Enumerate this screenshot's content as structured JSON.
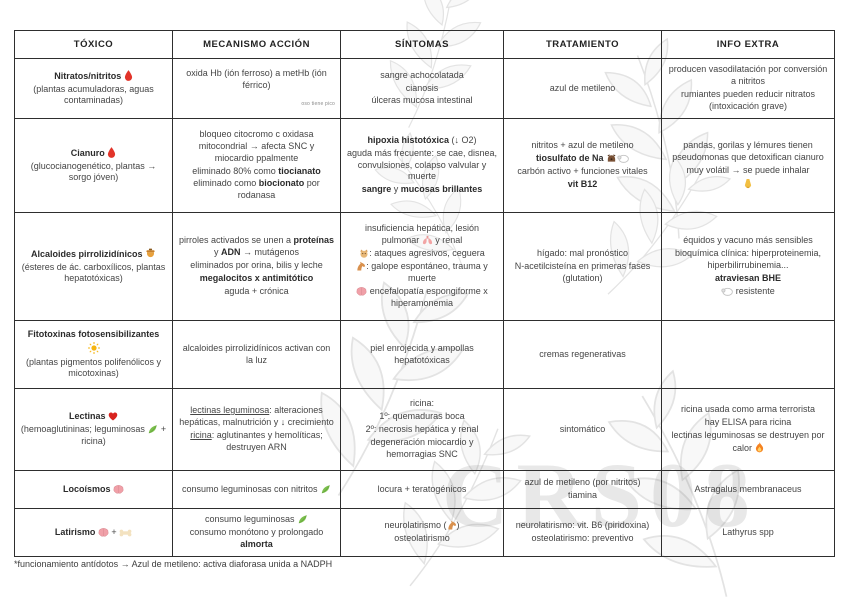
{
  "page": {
    "watermark_text": "CRS08",
    "footnote": "*funcionamiento antídotos → Azul de metileno: activa diaforasa unida a NADPH"
  },
  "colors": {
    "ink": "#454545",
    "ink_strong": "#2b2b2b",
    "border": "#2e2e2e",
    "watermark_gray": "#dfdfdf",
    "accent_red": "#e2342a"
  },
  "table": {
    "columns": [
      "TÓXICO",
      "MECANISMO ACCIÓN",
      "SÍNTOMAS",
      "TRATAMIENTO",
      "INFO EXTRA"
    ],
    "rows": [
      {
        "name": "nitratos-nitritos",
        "cells": [
          {
            "lines": [
              {
                "runs": [
                  {
                    "t": "Nitratos/nitritos ",
                    "b": true
                  },
                  {
                    "icon": "blood-drop"
                  }
                ]
              },
              {
                "runs": [
                  {
                    "t": "(plantas acumuladoras, aguas contaminadas)"
                  }
                ]
              }
            ]
          },
          {
            "lines": [
              {
                "runs": [
                  {
                    "t": "oxida Hb (ión ferroso)  a metHb (ión férrico)"
                  }
                ]
              },
              {
                "align": "right",
                "runs": [
                  {
                    "t": "oso tiene pico",
                    "tiny": true
                  }
                ]
              }
            ]
          },
          {
            "lines": [
              {
                "runs": [
                  {
                    "t": "sangre achocolatada"
                  }
                ]
              },
              {
                "runs": [
                  {
                    "t": "cianosis"
                  }
                ]
              },
              {
                "runs": [
                  {
                    "t": "úlceras mucosa intestinal"
                  }
                ]
              }
            ]
          },
          {
            "lines": [
              {
                "runs": [
                  {
                    "t": "azul de metileno"
                  }
                ]
              }
            ]
          },
          {
            "lines": [
              {
                "runs": [
                  {
                    "t": "producen vasodilatación por conversión a nitritos"
                  }
                ]
              },
              {
                "runs": [
                  {
                    "t": "rumiantes pueden reducir nitratos (intoxicación grave)"
                  }
                ]
              }
            ]
          }
        ]
      },
      {
        "name": "cianuro",
        "cells": [
          {
            "lines": [
              {
                "runs": [
                  {
                    "t": "Cianuro ",
                    "b": true
                  },
                  {
                    "icon": "blood-drop"
                  }
                ]
              },
              {
                "runs": [
                  {
                    "t": "(glucocianogenético, plantas → sorgo jóven)"
                  }
                ]
              }
            ]
          },
          {
            "lines": [
              {
                "runs": [
                  {
                    "t": "bloqueo citocromo c oxidasa mitocondrial → afecta SNC y miocardio ppalmente"
                  }
                ]
              },
              {
                "runs": [
                  {
                    "t": "eliminado 80% como "
                  },
                  {
                    "t": "tiocianato",
                    "b": true
                  }
                ]
              },
              {
                "runs": [
                  {
                    "t": "eliminado como "
                  },
                  {
                    "t": "biocionato",
                    "b": true
                  },
                  {
                    "t": " por rodanasa"
                  }
                ]
              }
            ]
          },
          {
            "lines": [
              {
                "runs": [
                  {
                    "t": "hipoxia histotóxica",
                    "b": true
                  },
                  {
                    "t": " (↓ O2)"
                  }
                ]
              },
              {
                "runs": [
                  {
                    "t": "aguda más frecuente: se cae, disnea, convulsiones, colapso valvular y muerte"
                  }
                ]
              },
              {
                "runs": [
                  {
                    "t": "sangre",
                    "b": true
                  },
                  {
                    "t": " y "
                  },
                  {
                    "t": "mucosas brillantes",
                    "b": true
                  }
                ]
              }
            ]
          },
          {
            "lines": [
              {
                "runs": [
                  {
                    "t": "nitritos + azul de metileno"
                  }
                ]
              },
              {
                "runs": [
                  {
                    "t": "tiosulfato de Na ",
                    "b": true
                  },
                  {
                    "icon": "dog"
                  },
                  {
                    "icon": "sheep"
                  }
                ]
              },
              {
                "runs": [
                  {
                    "t": "carbón activo + funciones vitales"
                  }
                ]
              },
              {
                "runs": [
                  {
                    "t": "vit B12",
                    "b": true
                  }
                ]
              }
            ]
          },
          {
            "lines": [
              {
                "runs": [
                  {
                    "t": "pandas, gorilas y lémures tienen pseudomonas que detoxifican cianuro"
                  }
                ]
              },
              {
                "runs": [
                  {
                    "t": "muy volátil → se puede inhalar"
                  }
                ]
              },
              {
                "runs": [
                  {
                    "icon": "nose"
                  }
                ]
              }
            ]
          }
        ]
      },
      {
        "name": "alcaloides-pirrolizidinicos",
        "cells": [
          {
            "lines": [
              {
                "runs": [
                  {
                    "t": "Alcaloides pirrolizidínicos ",
                    "b": true
                  },
                  {
                    "icon": "honey"
                  }
                ]
              },
              {
                "runs": [
                  {
                    "t": "(ésteres de ác. carboxílicos, plantas hepatotóxicas)"
                  }
                ]
              }
            ]
          },
          {
            "lines": [
              {
                "runs": [
                  {
                    "t": "pirroles activados se unen a "
                  },
                  {
                    "t": "proteínas",
                    "b": true
                  },
                  {
                    "t": " y "
                  },
                  {
                    "t": "ADN",
                    "b": true
                  },
                  {
                    "t": " → mutágenos"
                  }
                ]
              },
              {
                "runs": [
                  {
                    "t": "eliminados por orina, bilis y leche"
                  }
                ]
              },
              {
                "runs": [
                  {
                    "t": "megalocitos x antimitótico",
                    "b": true
                  }
                ]
              },
              {
                "runs": [
                  {
                    "t": "aguda + crónica"
                  }
                ]
              }
            ]
          },
          {
            "lines": [
              {
                "runs": [
                  {
                    "t": "insuficiencia hepática, lesión pulmonar "
                  },
                  {
                    "icon": "lungs"
                  },
                  {
                    "t": " y renal"
                  }
                ]
              },
              {
                "runs": [
                  {
                    "icon": "cat"
                  },
                  {
                    "t": ": ataques agresivos, ceguera"
                  }
                ]
              },
              {
                "runs": [
                  {
                    "icon": "horse"
                  },
                  {
                    "t": ": galope espontáneo, trauma y muerte"
                  }
                ]
              },
              {
                "runs": [
                  {
                    "icon": "brain"
                  },
                  {
                    "t": " encefalopatía espongiforme x hiperamonemia"
                  }
                ]
              }
            ]
          },
          {
            "lines": [
              {
                "runs": [
                  {
                    "t": "hígado: mal pronóstico"
                  }
                ]
              },
              {
                "runs": [
                  {
                    "t": "N-acetilcisteína en primeras fases (glutation)"
                  }
                ]
              }
            ]
          },
          {
            "lines": [
              {
                "runs": [
                  {
                    "t": "équidos y vacuno más sensibles"
                  }
                ]
              },
              {
                "runs": [
                  {
                    "t": "bioquímica clínica: hiperproteinemia, hiperbilirrubinemia..."
                  }
                ]
              },
              {
                "runs": [
                  {
                    "t": "atraviesan BHE",
                    "b": true
                  }
                ]
              },
              {
                "runs": [
                  {
                    "icon": "sheep"
                  },
                  {
                    "t": " resistente"
                  }
                ]
              }
            ]
          }
        ]
      },
      {
        "name": "fitotoxinas-fotosensibilizantes",
        "cells": [
          {
            "lines": [
              {
                "runs": [
                  {
                    "t": "Fitotoxinas fotosensibilizantes",
                    "b": true
                  }
                ]
              },
              {
                "runs": [
                  {
                    "icon": "sun"
                  }
                ]
              },
              {
                "runs": [
                  {
                    "t": "(plantas pigmentos polifenólicos y micotoxinas)"
                  }
                ]
              }
            ]
          },
          {
            "lines": [
              {
                "runs": [
                  {
                    "t": "alcaloides pirrolizidínicos activan con la luz"
                  }
                ]
              }
            ]
          },
          {
            "lines": [
              {
                "runs": [
                  {
                    "t": "piel enrojecida y ampollas hepatotóxicas"
                  }
                ]
              }
            ]
          },
          {
            "lines": [
              {
                "runs": [
                  {
                    "t": "cremas regenerativas"
                  }
                ]
              }
            ]
          },
          {
            "lines": []
          }
        ]
      },
      {
        "name": "lectinas",
        "cells": [
          {
            "lines": [
              {
                "runs": [
                  {
                    "t": "Lectinas ",
                    "b": true
                  },
                  {
                    "icon": "heart"
                  }
                ]
              },
              {
                "runs": [
                  {
                    "t": "(hemoaglutininas; leguminosas "
                  },
                  {
                    "icon": "sprout"
                  },
                  {
                    "t": " + ricina)"
                  }
                ]
              }
            ]
          },
          {
            "lines": [
              {
                "runs": [
                  {
                    "t": "lectinas leguminosa",
                    "u": true
                  },
                  {
                    "t": ": alteraciones hepáticas, malnutrición y ↓ crecimiento"
                  }
                ]
              },
              {
                "runs": [
                  {
                    "t": "ricina",
                    "u": true
                  },
                  {
                    "t": ": aglutinantes y hemolíticas; destruyen ARN"
                  }
                ]
              }
            ]
          },
          {
            "lines": [
              {
                "runs": [
                  {
                    "t": "ricina:"
                  }
                ]
              },
              {
                "runs": [
                  {
                    "t": "1º: quemaduras boca"
                  }
                ]
              },
              {
                "runs": [
                  {
                    "t": "2º: necrosis hepática y renal"
                  }
                ]
              },
              {
                "runs": [
                  {
                    "t": "degeneración miocardio y hemorragias SNC"
                  }
                ]
              }
            ]
          },
          {
            "lines": [
              {
                "runs": [
                  {
                    "t": "sintomático"
                  }
                ]
              }
            ]
          },
          {
            "lines": [
              {
                "runs": [
                  {
                    "t": "ricina usada como arma terrorista"
                  }
                ]
              },
              {
                "runs": [
                  {
                    "t": "hay ELISA para ricina"
                  }
                ]
              },
              {
                "runs": [
                  {
                    "t": "lectinas leguminosas se destruyen por calor "
                  },
                  {
                    "icon": "flame"
                  }
                ]
              }
            ]
          }
        ]
      },
      {
        "name": "locoismos",
        "cells": [
          {
            "lines": [
              {
                "runs": [
                  {
                    "t": "Locoísmos ",
                    "b": true
                  },
                  {
                    "icon": "brain"
                  }
                ]
              }
            ]
          },
          {
            "lines": [
              {
                "runs": [
                  {
                    "t": "consumo leguminosas con nitritos "
                  },
                  {
                    "icon": "sprout"
                  }
                ]
              }
            ]
          },
          {
            "lines": [
              {
                "runs": [
                  {
                    "t": "locura + teratogénicos"
                  }
                ]
              }
            ]
          },
          {
            "lines": [
              {
                "runs": [
                  {
                    "t": "azul de metileno (por nitritos)"
                  }
                ]
              },
              {
                "runs": [
                  {
                    "t": "tiamina"
                  }
                ]
              }
            ]
          },
          {
            "lines": [
              {
                "runs": [
                  {
                    "t": "Astragalus membranaceus"
                  }
                ]
              }
            ]
          }
        ]
      },
      {
        "name": "latirismo",
        "cells": [
          {
            "lines": [
              {
                "runs": [
                  {
                    "t": "Latirismo ",
                    "b": true
                  },
                  {
                    "icon": "brain"
                  },
                  {
                    "t": " + "
                  },
                  {
                    "icon": "bone"
                  }
                ]
              }
            ]
          },
          {
            "lines": [
              {
                "runs": [
                  {
                    "t": "consumo leguminosas "
                  },
                  {
                    "icon": "sprout"
                  }
                ]
              },
              {
                "runs": [
                  {
                    "t": "consumo monótono y prolongado"
                  }
                ]
              },
              {
                "runs": [
                  {
                    "t": "almorta",
                    "b": true
                  }
                ]
              }
            ]
          },
          {
            "lines": [
              {
                "runs": [
                  {
                    "t": "neurolatirismo ("
                  },
                  {
                    "icon": "horse"
                  },
                  {
                    "t": ")"
                  }
                ]
              },
              {
                "runs": [
                  {
                    "t": "osteolatirismo"
                  }
                ]
              }
            ]
          },
          {
            "lines": [
              {
                "runs": [
                  {
                    "t": "neurolatirismo: vit. B6 (piridoxina)"
                  }
                ]
              },
              {
                "runs": [
                  {
                    "t": "osteolatirismo: preventivo"
                  }
                ]
              }
            ]
          },
          {
            "lines": [
              {
                "runs": [
                  {
                    "t": "Lathyrus spp"
                  }
                ]
              }
            ]
          }
        ]
      }
    ]
  }
}
